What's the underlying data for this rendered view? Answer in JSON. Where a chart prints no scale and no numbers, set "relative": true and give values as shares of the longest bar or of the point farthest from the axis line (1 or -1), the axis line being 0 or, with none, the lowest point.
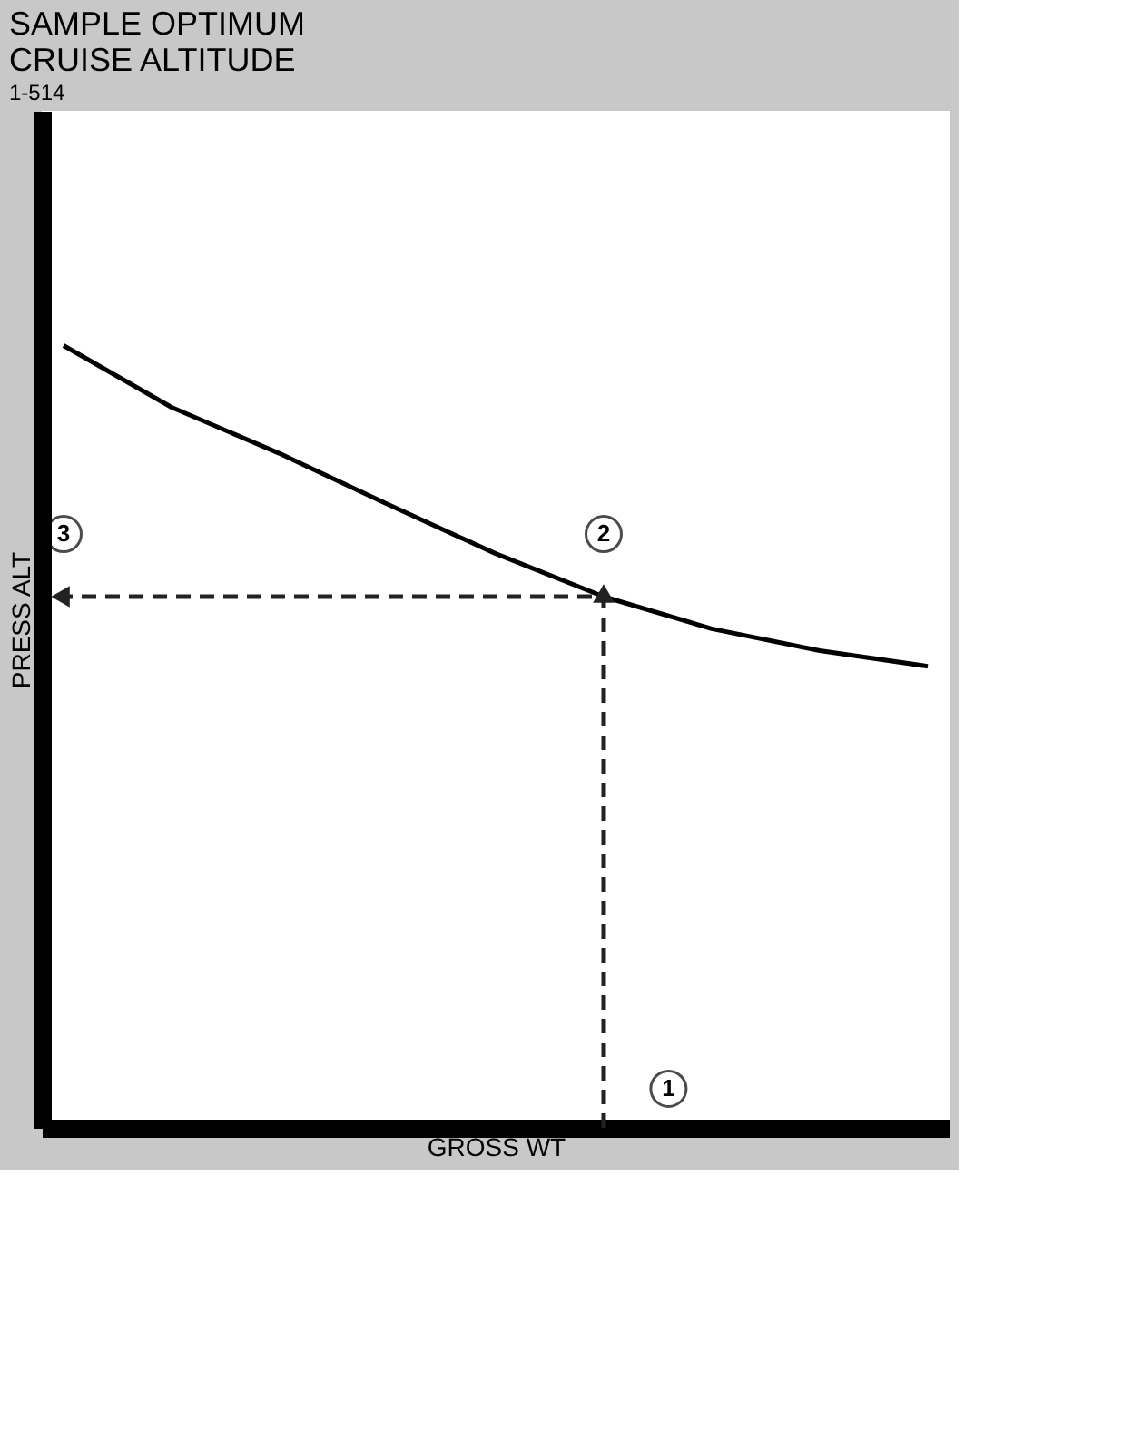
{
  "chart_data": {
    "type": "line",
    "title": "SAMPLE OPTIMUM\nCRUISE ALTITUDE",
    "xlabel": "GROSS WT",
    "ylabel": "PRESS ALT",
    "relative": true,
    "categories": [
      null,
      null,
      null,
      null,
      null,
      null,
      null,
      null,
      null
    ],
    "series": [
      {
        "color": "#000000",
        "values": [
          1,
          0.921,
          0.862,
          0.797,
          0.734,
          0.679,
          0.638,
          0.61,
          0.59
        ]
      }
    ],
    "annotations": [
      {
        "text": "2",
        "y": 0.679
      },
      {
        "text": "3",
        "y": 0.679
      },
      {
        "text": "1",
        "y": 0.05
      },
      "1-514"
    ],
    "grid": false
  }
}
